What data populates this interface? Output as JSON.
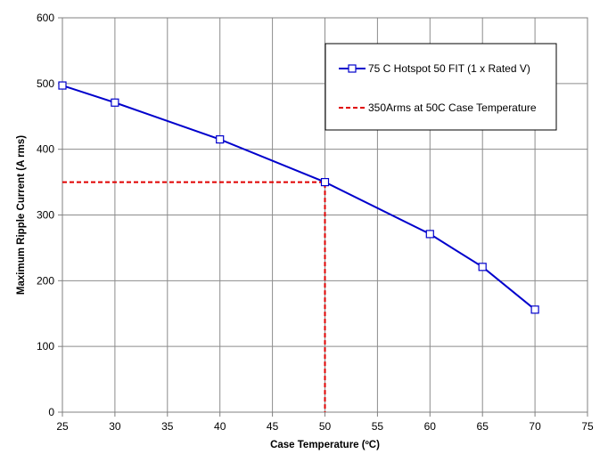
{
  "chart_data": {
    "type": "line",
    "title": "",
    "xlabel": "Case Temperature (ºC)",
    "ylabel": "Maximum Ripple Current (A rms)",
    "xlim": [
      25,
      75
    ],
    "ylim": [
      0,
      600
    ],
    "xticks": [
      25,
      30,
      35,
      40,
      45,
      50,
      55,
      60,
      65,
      70,
      75
    ],
    "yticks": [
      0,
      100,
      200,
      300,
      400,
      500,
      600
    ],
    "grid": true,
    "legend_position": "top-right",
    "series": [
      {
        "name": "75 C Hotspot 50 FIT (1 x Rated V)",
        "color": "#0000cc",
        "marker": "square",
        "style": "solid",
        "x": [
          25,
          30,
          40,
          50,
          60,
          65,
          70
        ],
        "y": [
          497,
          471,
          415,
          350,
          271,
          221,
          156
        ]
      },
      {
        "name": "350Arms at 50C Case Temperature",
        "color": "#e00000",
        "marker": "none",
        "style": "dashed",
        "x": [
          25,
          50,
          50
        ],
        "y": [
          350,
          350,
          0
        ]
      }
    ]
  }
}
